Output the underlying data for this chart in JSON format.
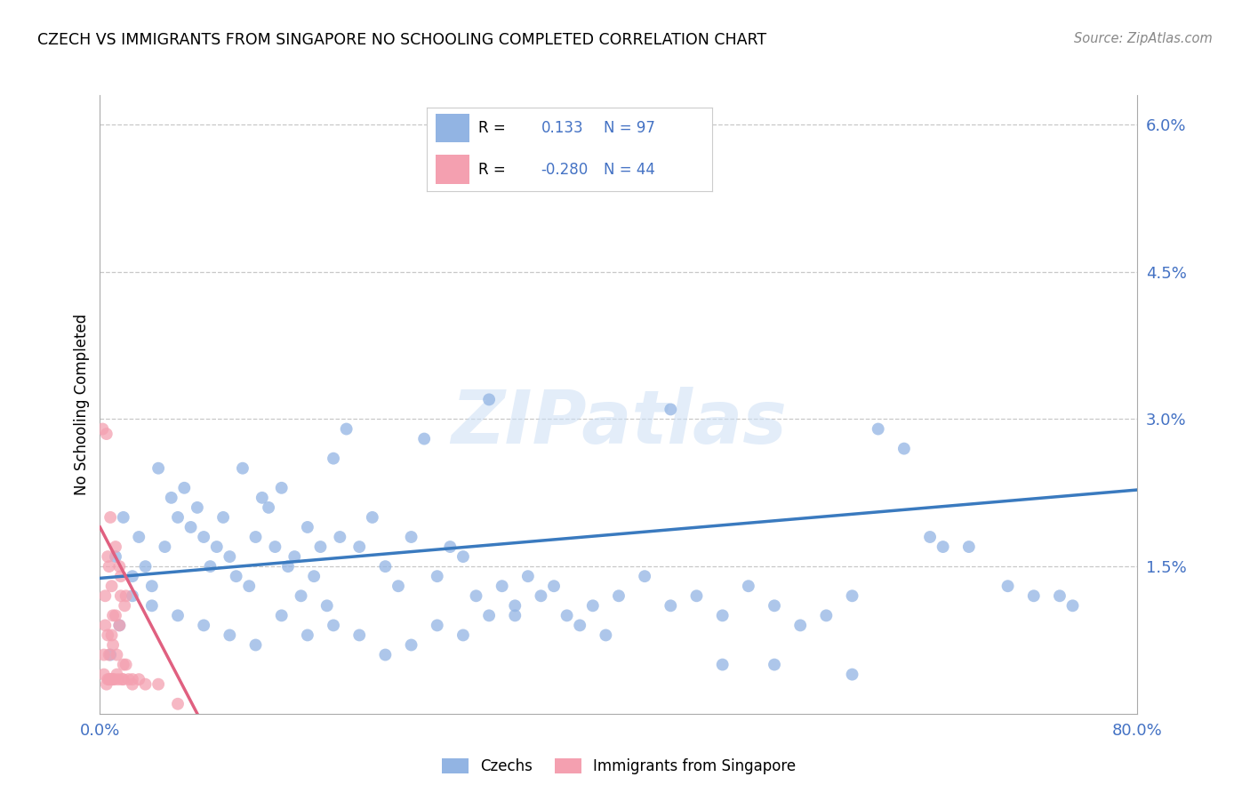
{
  "title": "CZECH VS IMMIGRANTS FROM SINGAPORE NO SCHOOLING COMPLETED CORRELATION CHART",
  "source": "Source: ZipAtlas.com",
  "ylabel_label": "No Schooling Completed",
  "xmin": 0.0,
  "xmax": 80.0,
  "ymin": 0.0,
  "ymax": 6.3,
  "czech_color": "#92b4e3",
  "singapore_color": "#f4a0b0",
  "czech_line_color": "#3a7abf",
  "singapore_line_color": "#e06080",
  "czech_R": 0.133,
  "czech_N": 97,
  "singapore_R": -0.28,
  "singapore_N": 44,
  "legend_czechs": "Czechs",
  "legend_singapore": "Immigrants from Singapore",
  "watermark": "ZIPatlas",
  "ytick_positions": [
    0.0,
    1.5,
    3.0,
    4.5,
    6.0
  ],
  "ytick_labels": [
    "",
    "1.5%",
    "3.0%",
    "4.5%",
    "6.0%"
  ],
  "xtick_positions": [
    0.0,
    80.0
  ],
  "xtick_labels": [
    "0.0%",
    "80.0%"
  ],
  "czech_line_x0": 0.0,
  "czech_line_x1": 80.0,
  "czech_line_y0": 1.38,
  "czech_line_y1": 2.28,
  "singapore_line_x0": 0.0,
  "singapore_line_x1": 7.5,
  "singapore_line_y0": 1.9,
  "singapore_line_y1": 0.0,
  "czech_x": [
    1.2,
    1.8,
    2.5,
    3.0,
    3.5,
    4.0,
    4.5,
    5.0,
    5.5,
    6.0,
    6.5,
    7.0,
    7.5,
    8.0,
    8.5,
    9.0,
    9.5,
    10.0,
    10.5,
    11.0,
    11.5,
    12.0,
    12.5,
    13.0,
    13.5,
    14.0,
    14.5,
    15.0,
    15.5,
    16.0,
    16.5,
    17.0,
    17.5,
    18.0,
    18.5,
    19.0,
    20.0,
    21.0,
    22.0,
    23.0,
    24.0,
    25.0,
    26.0,
    27.0,
    28.0,
    29.0,
    30.0,
    31.0,
    32.0,
    33.0,
    34.0,
    35.0,
    36.0,
    37.0,
    38.0,
    39.0,
    40.0,
    42.0,
    44.0,
    46.0,
    48.0,
    50.0,
    52.0,
    54.0,
    56.0,
    58.0,
    60.0,
    62.0,
    64.0,
    65.0,
    67.0,
    70.0,
    72.0,
    74.0,
    75.0,
    30.0,
    32.0,
    28.0,
    26.0,
    24.0,
    22.0,
    20.0,
    18.0,
    16.0,
    14.0,
    12.0,
    10.0,
    8.0,
    6.0,
    4.0,
    2.5,
    1.5,
    0.8,
    44.0,
    48.0,
    52.0,
    58.0
  ],
  "czech_y": [
    1.6,
    2.0,
    1.4,
    1.8,
    1.5,
    1.3,
    2.5,
    1.7,
    2.2,
    2.0,
    2.3,
    1.9,
    2.1,
    1.8,
    1.5,
    1.7,
    2.0,
    1.6,
    1.4,
    2.5,
    1.3,
    1.8,
    2.2,
    2.1,
    1.7,
    2.3,
    1.5,
    1.6,
    1.2,
    1.9,
    1.4,
    1.7,
    1.1,
    2.6,
    1.8,
    2.9,
    1.7,
    2.0,
    1.5,
    1.3,
    1.8,
    2.8,
    1.4,
    1.7,
    1.6,
    1.2,
    1.0,
    1.3,
    1.1,
    1.4,
    1.2,
    1.3,
    1.0,
    0.9,
    1.1,
    0.8,
    1.2,
    1.4,
    1.1,
    1.2,
    1.0,
    1.3,
    1.1,
    0.9,
    1.0,
    1.2,
    2.9,
    2.7,
    1.8,
    1.7,
    1.7,
    1.3,
    1.2,
    1.2,
    1.1,
    3.2,
    1.0,
    0.8,
    0.9,
    0.7,
    0.6,
    0.8,
    0.9,
    0.8,
    1.0,
    0.7,
    0.8,
    0.9,
    1.0,
    1.1,
    1.2,
    0.9,
    0.6,
    3.1,
    0.5,
    0.5,
    0.4
  ],
  "singapore_x": [
    0.2,
    0.3,
    0.4,
    0.5,
    0.5,
    0.6,
    0.6,
    0.7,
    0.7,
    0.8,
    0.8,
    0.9,
    0.9,
    1.0,
    1.0,
    1.1,
    1.2,
    1.3,
    1.4,
    1.5,
    1.6,
    1.7,
    1.8,
    1.9,
    2.0,
    2.2,
    2.5,
    3.0,
    0.3,
    0.4,
    0.6,
    0.7,
    0.9,
    1.0,
    1.2,
    1.3,
    1.5,
    1.6,
    1.8,
    2.0,
    2.5,
    3.5,
    4.5,
    6.0
  ],
  "singapore_y": [
    2.9,
    0.4,
    1.2,
    0.3,
    2.85,
    0.35,
    0.8,
    0.35,
    1.5,
    0.35,
    2.0,
    0.35,
    1.3,
    0.35,
    1.0,
    0.35,
    1.7,
    0.6,
    0.35,
    1.5,
    1.2,
    0.35,
    0.35,
    1.1,
    1.2,
    0.35,
    0.35,
    0.35,
    0.6,
    0.9,
    1.6,
    0.6,
    0.8,
    0.7,
    1.0,
    0.4,
    0.9,
    1.4,
    0.5,
    0.5,
    0.3,
    0.3,
    0.3,
    0.1
  ]
}
